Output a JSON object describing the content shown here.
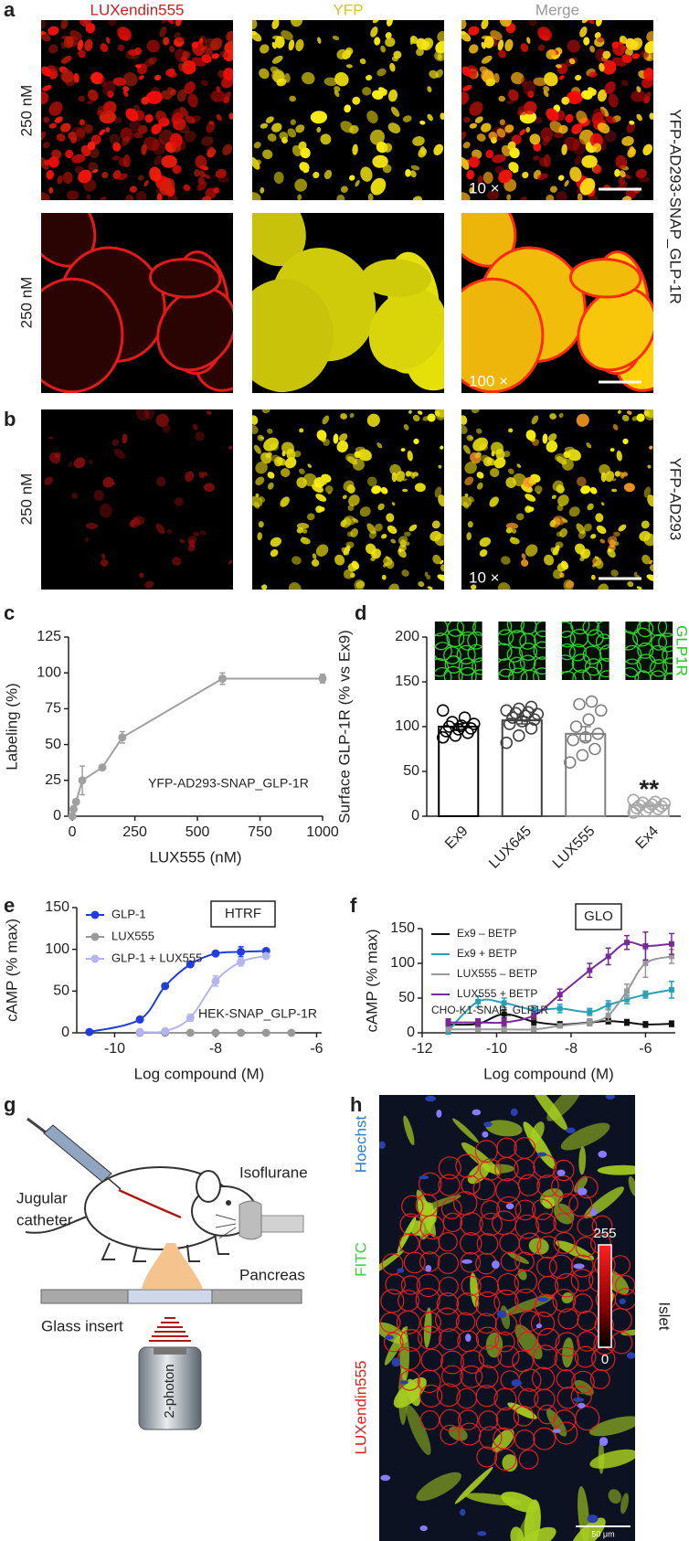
{
  "panels": {
    "a": {
      "label": "a",
      "columns": [
        "LUXendin555",
        "YFP",
        "Merge"
      ],
      "rows": [
        "250 nM",
        "250 nM"
      ],
      "side_label": "YFP-AD293-SNAP_GLP-1R",
      "magnifications": [
        "10 ×",
        "100 ×"
      ]
    },
    "b": {
      "label": "b",
      "row": "250 nM",
      "side_label": "YFP-AD293",
      "magnification": "10 ×"
    },
    "g": {
      "label": "g",
      "texts": [
        "Jugular",
        "catheter",
        "Isoflurane",
        "Pancreas",
        "Glass insert",
        "2-photon"
      ]
    },
    "h": {
      "label": "h",
      "channels": [
        "Hoechst",
        "FITC",
        "LUXendin555"
      ],
      "colorbar": {
        "max": 255,
        "min": 0
      },
      "side_label": "Islet",
      "scale_bar": "50 μm"
    }
  },
  "chart_data": [
    {
      "label": "c",
      "type": "line",
      "xlabel": "LUX555 (nM)",
      "ylabel": "Labeling (%)",
      "annotation": "YFP-AD293-SNAP_GLP-1R",
      "x": [
        0,
        5,
        15,
        40,
        120,
        200,
        600,
        1000
      ],
      "series": [
        {
          "color": "#a0a0a0",
          "values": [
            0,
            5,
            10,
            25,
            34,
            55,
            96,
            96
          ],
          "errors": [
            1,
            2,
            2,
            10,
            1,
            4,
            4,
            3
          ]
        }
      ],
      "xlim": [
        -15,
        1000
      ],
      "xticks": [
        0,
        250,
        500,
        750,
        1000
      ],
      "ylim": [
        0,
        125
      ],
      "yticks": [
        0,
        25,
        50,
        75,
        100,
        125
      ],
      "marker": "circle"
    },
    {
      "label": "d",
      "type": "bar",
      "ylabel": "Surface GLP-1R (% vs Ex9)",
      "categories": [
        "Ex9",
        "LUX645",
        "LUX555",
        "Ex4"
      ],
      "values": [
        100,
        107,
        92,
        12
      ],
      "errors": [
        3,
        4,
        8,
        1
      ],
      "points": [
        [
          88,
          90,
          93,
          95,
          97,
          98,
          100,
          101,
          103,
          105,
          110,
          118
        ],
        [
          82,
          90,
          98,
          103,
          106,
          108,
          110,
          112,
          114,
          115,
          116,
          118,
          120,
          122
        ],
        [
          60,
          68,
          75,
          85,
          88,
          92,
          100,
          108,
          118,
          125,
          128
        ],
        [
          4,
          6,
          8,
          9,
          10,
          11,
          12,
          13,
          14,
          15,
          16,
          18
        ]
      ],
      "colors": [
        "#000000",
        "#404040",
        "#808080",
        "#a8a8a8"
      ],
      "ylim": [
        0,
        200
      ],
      "yticks": [
        0,
        50,
        100,
        150,
        200
      ],
      "annotation": "**",
      "inset_label": "GLP1R"
    },
    {
      "label": "e",
      "type": "line",
      "xlabel": "Log compound (M)",
      "ylabel": "cAMP (% max)",
      "annotations": [
        "HTRF",
        "HEK-SNAP_GLP-1R"
      ],
      "x": [
        -10.5,
        -9.5,
        -9,
        -8.5,
        -8,
        -7.5,
        -7,
        -6.5
      ],
      "series": [
        {
          "name": "GLP-1",
          "color": "#1f3fd8",
          "values": [
            1,
            16,
            56,
            82,
            95,
            97,
            98,
            null
          ],
          "errors": [
            0,
            1,
            2,
            2,
            2,
            6,
            1,
            null
          ]
        },
        {
          "name": "LUX555",
          "color": "#999999",
          "values": [
            null,
            0,
            0,
            0,
            0,
            0,
            0,
            0
          ],
          "errors": [
            null,
            0,
            0,
            0,
            0,
            0,
            0,
            0
          ]
        },
        {
          "name": "GLP-1 + LUX555",
          "color": "#b4b4ef",
          "values": [
            null,
            1,
            2,
            18,
            62,
            85,
            92,
            null
          ],
          "errors": [
            null,
            1,
            1,
            4,
            6,
            5,
            3,
            null
          ]
        }
      ],
      "xlim": [
        -10.75,
        -5.9
      ],
      "xticks": [
        -10,
        -8,
        -6
      ],
      "ylim": [
        0,
        150
      ],
      "yticks": [
        0,
        50,
        100,
        150
      ],
      "smooth": true,
      "marker": "circle",
      "legend": "upper left"
    },
    {
      "label": "f",
      "type": "line",
      "xlabel": "Log compound (M)",
      "ylabel": "cAMP (% max)",
      "annotations": [
        "GLO",
        "CHO-K1-SNAP_GLP1R"
      ],
      "x": [
        -11.3,
        -10.5,
        -9.8,
        -9,
        -8.3,
        -7.5,
        -7,
        -6.5,
        -6,
        -5.3
      ],
      "series": [
        {
          "name": "Ex9 – BETP",
          "color": "#111111",
          "values": [
            12,
            13,
            27,
            16,
            12,
            15,
            17,
            15,
            12,
            13
          ],
          "errors": [
            6,
            5,
            6,
            5,
            4,
            4,
            4,
            4,
            4,
            4
          ]
        },
        {
          "name": "Ex9 + BETP",
          "color": "#2a9fb5",
          "values": [
            3,
            45,
            43,
            33,
            35,
            30,
            40,
            48,
            55,
            62
          ],
          "errors": [
            5,
            8,
            7,
            6,
            6,
            5,
            6,
            6,
            5,
            12
          ]
        },
        {
          "name": "LUX555 – BETP",
          "color": "#999999",
          "values": [
            5,
            5,
            5,
            5,
            10,
            15,
            25,
            60,
            100,
            110
          ],
          "errors": [
            2,
            2,
            3,
            3,
            3,
            5,
            8,
            10,
            20,
            10
          ]
        },
        {
          "name": "LUX555 + BETP",
          "color": "#7a2a96",
          "values": [
            15,
            15,
            15,
            25,
            55,
            90,
            110,
            130,
            125,
            128
          ],
          "errors": [
            5,
            5,
            5,
            6,
            8,
            10,
            12,
            10,
            20,
            15
          ]
        }
      ],
      "xlim": [
        -12,
        -5.2
      ],
      "xticks": [
        -12,
        -10,
        -8,
        -6
      ],
      "ylim": [
        0,
        150
      ],
      "yticks": [
        0,
        50,
        100,
        150
      ],
      "smooth": true,
      "marker": "square",
      "legend": "upper left"
    }
  ]
}
